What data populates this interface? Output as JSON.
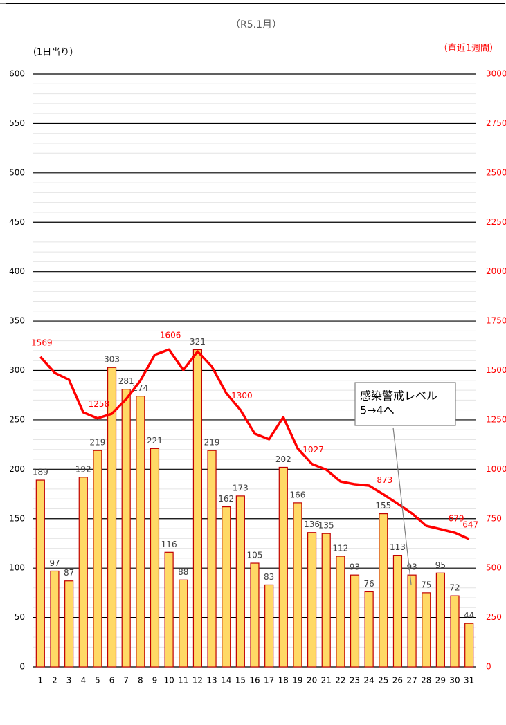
{
  "chart_data": {
    "type": "bar_line",
    "title": "（R5.1月）",
    "y_label": "（1日当り）",
    "y2_label": "（直近1週間）",
    "categories": [
      "1",
      "2",
      "3",
      "4",
      "5",
      "6",
      "7",
      "8",
      "9",
      "10",
      "11",
      "12",
      "13",
      "14",
      "15",
      "16",
      "17",
      "18",
      "19",
      "20",
      "21",
      "22",
      "23",
      "24",
      "25",
      "26",
      "27",
      "28",
      "29",
      "30",
      "31"
    ],
    "series": [
      {
        "type": "bar",
        "color": "#ffd966",
        "edge_color": "#c00000",
        "label_color": "#404040",
        "values": [
          189,
          97,
          87,
          192,
          219,
          303,
          281,
          274,
          221,
          116,
          88,
          321,
          219,
          162,
          173,
          105,
          83,
          202,
          166,
          136,
          135,
          112,
          93,
          76,
          155,
          113,
          93,
          75,
          95,
          72,
          44
        ]
      },
      {
        "type": "line",
        "axis": "y2",
        "color": "#ff0000",
        "values": [
          1569,
          1488,
          1453,
          1288,
          1258,
          1281,
          1355,
          1449,
          1579,
          1606,
          1502,
          1596,
          1519,
          1386,
          1300,
          1180,
          1152,
          1264,
          1106,
          1027,
          998,
          938,
          924,
          917,
          873,
          826,
          777,
          714,
          697,
          679,
          647
        ],
        "value_labels": [
          "1569",
          null,
          null,
          null,
          "1258",
          null,
          null,
          null,
          null,
          "1606",
          null,
          null,
          null,
          null,
          "1300",
          null,
          null,
          null,
          null,
          "1027",
          null,
          null,
          null,
          null,
          "873",
          null,
          null,
          null,
          null,
          "679",
          "647"
        ]
      }
    ],
    "ylim": [
      0,
      600
    ],
    "yticks": [
      0,
      50,
      100,
      150,
      200,
      250,
      300,
      350,
      400,
      450,
      500,
      550,
      600
    ],
    "minor_yticks": [
      10,
      20,
      30,
      40,
      60,
      70,
      80,
      90,
      110,
      120,
      130,
      140,
      160,
      170,
      180,
      190,
      210,
      220,
      230,
      240,
      260,
      270,
      280,
      290,
      310,
      320,
      330,
      340,
      360,
      370,
      380,
      390,
      410,
      420,
      430,
      440,
      460,
      470,
      480,
      490,
      510,
      520,
      530,
      540,
      560,
      570,
      580,
      590
    ],
    "y2lim": [
      0,
      3000
    ],
    "y2ticks": [
      0,
      250,
      500,
      750,
      1000,
      1250,
      1500,
      1750,
      2000,
      2250,
      2500,
      2750,
      3000
    ],
    "y2_color": "#ff0000",
    "grid": true,
    "annotation": {
      "lines": [
        "感染警戒レベル",
        "5→4へ"
      ],
      "category": 26
    }
  }
}
